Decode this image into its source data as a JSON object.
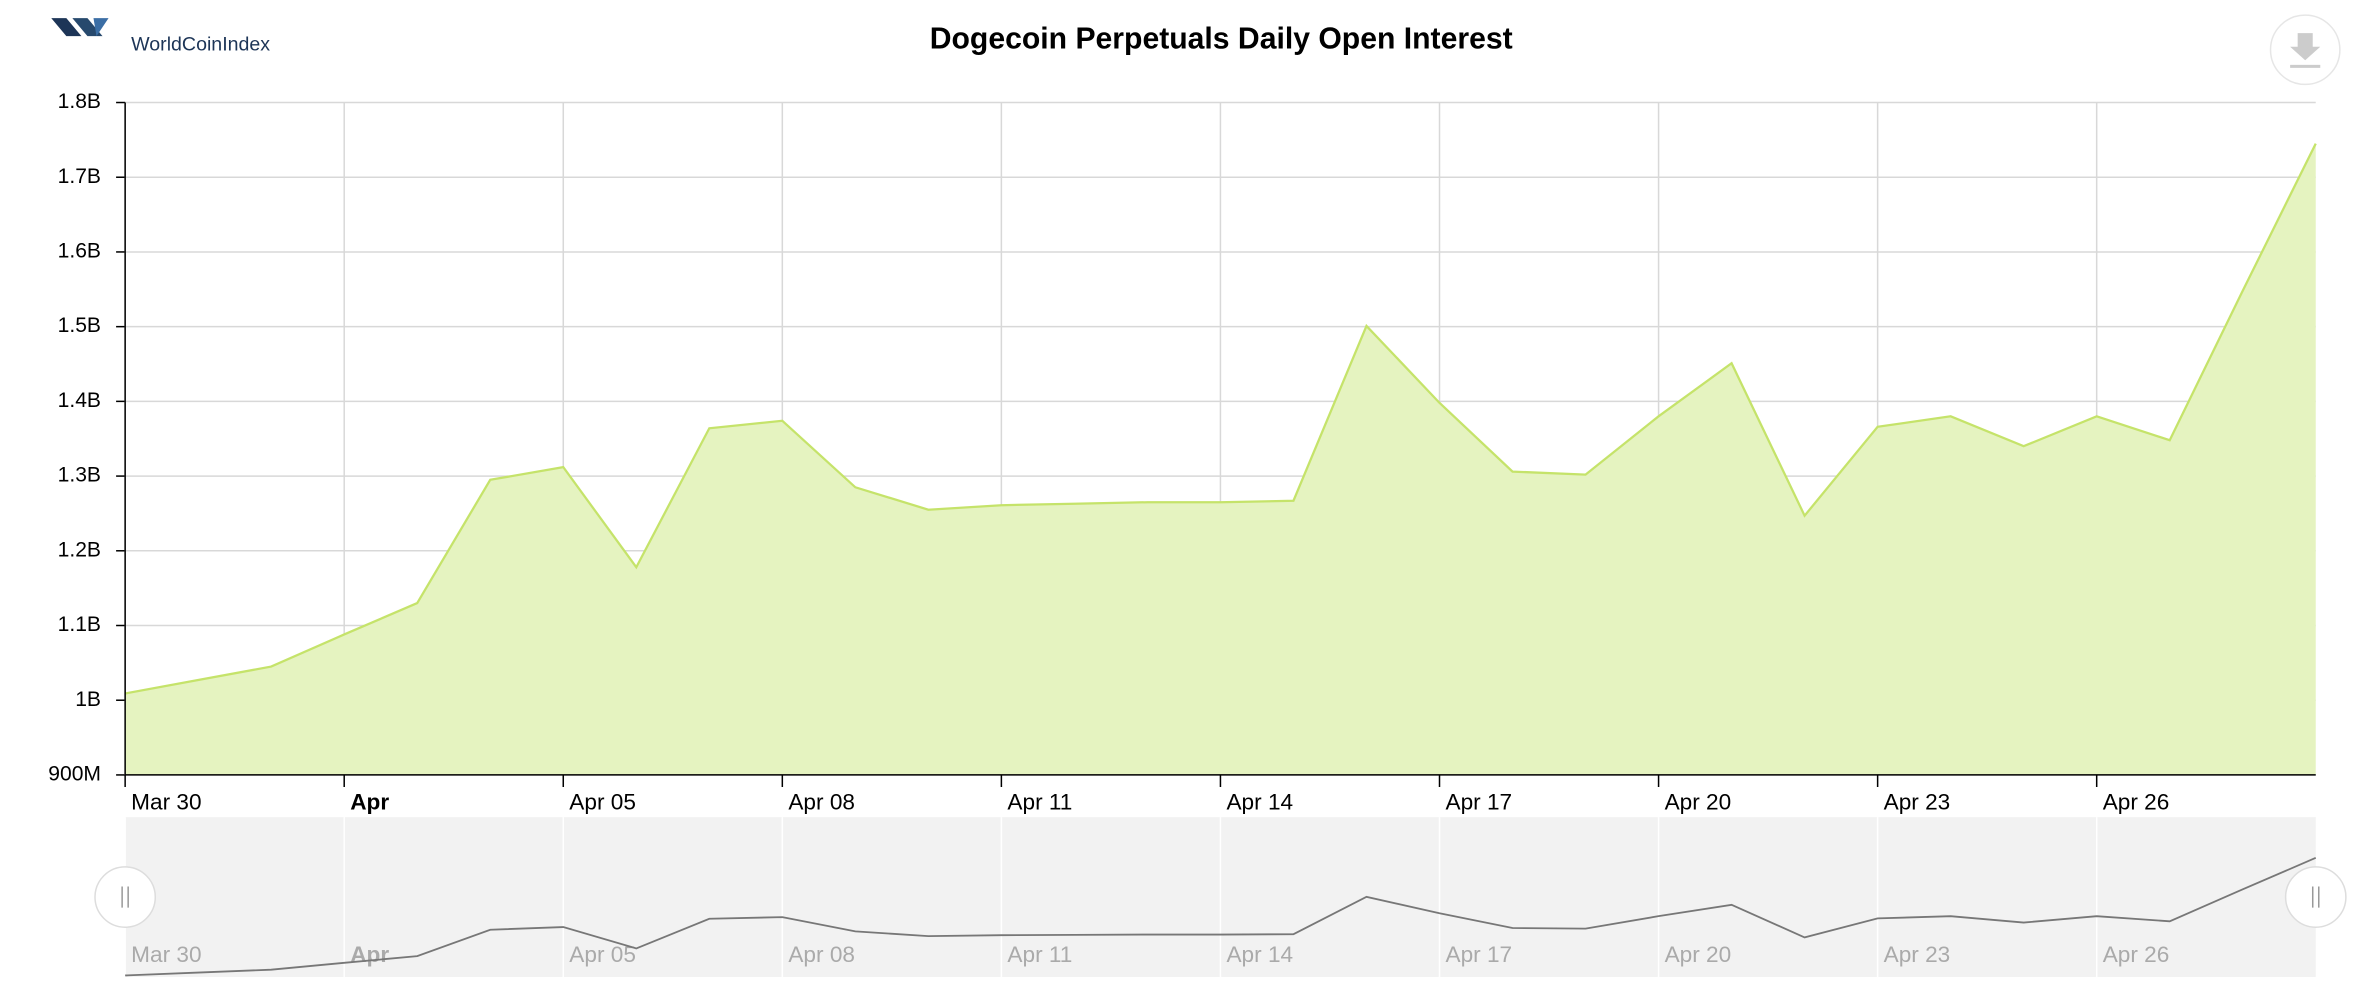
{
  "logo": {
    "text": "WorldCoinIndex"
  },
  "chart_data": {
    "type": "area",
    "title": "Dogecoin Perpetuals Daily Open Interest",
    "x": [
      "Mar 30",
      "Mar 31",
      "Apr 01",
      "Apr 02",
      "Apr 03",
      "Apr 04",
      "Apr 05",
      "Apr 06",
      "Apr 07",
      "Apr 08",
      "Apr 09",
      "Apr 10",
      "Apr 11",
      "Apr 12",
      "Apr 13",
      "Apr 14",
      "Apr 15",
      "Apr 16",
      "Apr 17",
      "Apr 18",
      "Apr 19",
      "Apr 20",
      "Apr 21",
      "Apr 22",
      "Apr 23",
      "Apr 24",
      "Apr 25",
      "Apr 26",
      "Apr 27",
      "Apr 28",
      "Apr 29"
    ],
    "series": [
      {
        "color": "#c5e36a",
        "values": [
          1009000000,
          1027000000,
          1045000000,
          1088000000,
          1130000000,
          1295000000,
          1312000000,
          1178000000,
          1364000000,
          1374000000,
          1285000000,
          1255000000,
          1261000000,
          1263000000,
          1265000000,
          1265000000,
          1267000000,
          1501000000,
          1398000000,
          1306000000,
          1302000000,
          1380000000,
          1451000000,
          1247000000,
          1366000000,
          1380000000,
          1340000000,
          1380000000,
          1348000000,
          1548000000,
          1745000000
        ]
      }
    ],
    "ylim": [
      900000000,
      1800000000
    ],
    "yticks": [
      {
        "value": 900000000,
        "label": "900M"
      },
      {
        "value": 1000000000,
        "label": "1B"
      },
      {
        "value": 1100000000,
        "label": "1.1B"
      },
      {
        "value": 1200000000,
        "label": "1.2B"
      },
      {
        "value": 1300000000,
        "label": "1.3B"
      },
      {
        "value": 1400000000,
        "label": "1.4B"
      },
      {
        "value": 1500000000,
        "label": "1.5B"
      },
      {
        "value": 1600000000,
        "label": "1.6B"
      },
      {
        "value": 1700000000,
        "label": "1.7B"
      },
      {
        "value": 1800000000,
        "label": "1.8B"
      }
    ],
    "xticks": [
      "Mar 30",
      {
        "value": "Apr 02",
        "label": "Apr"
      },
      "Apr 05",
      "Apr 08",
      "Apr 11",
      "Apr 14",
      "Apr 17",
      "Apr 20",
      "Apr 23",
      "Apr 26"
    ],
    "grid": true,
    "navigator": true
  }
}
